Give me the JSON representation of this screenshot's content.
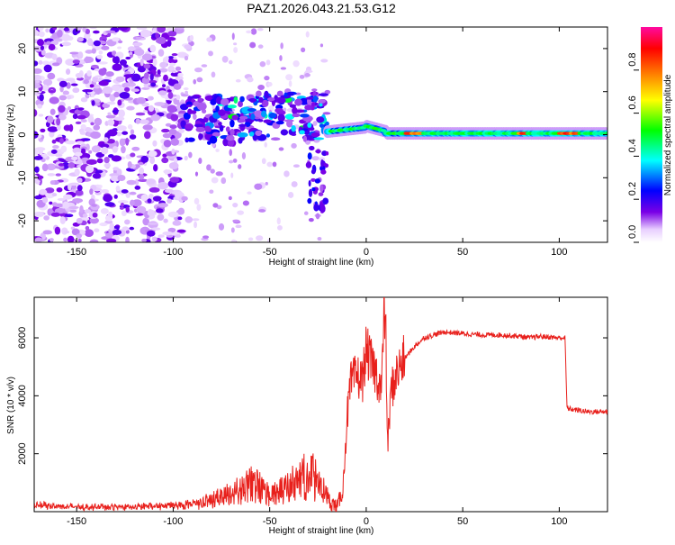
{
  "title": "PAZ1.2026.043.21.53.G12",
  "chart_data": [
    {
      "type": "heatmap",
      "title": "PAZ1.2026.043.21.53.G12",
      "xlabel": "Height of straight line (km)",
      "ylabel": "Frequency (Hz)",
      "xlim": [
        -172,
        125
      ],
      "ylim": [
        -25,
        25
      ],
      "xticks": [
        -150,
        -100,
        -50,
        0,
        50,
        100
      ],
      "yticks": [
        -20,
        -10,
        0,
        10,
        20
      ],
      "colorbar": {
        "label": "Normalized spectral amplitude",
        "range": [
          0.0,
          1.0
        ],
        "ticks": [
          0.0,
          0.2,
          0.4,
          0.6,
          0.8
        ],
        "colormap": [
          "#ffffff",
          "#7a00e6",
          "#0000ff",
          "#00ffff",
          "#00ff00",
          "#ffff00",
          "#ff8000",
          "#ff0000",
          "#ff00a0"
        ]
      },
      "description_regions": [
        {
          "x_range": [
            -172,
            -95
          ],
          "level": "scattered noise 0.0-0.2"
        },
        {
          "x_range": [
            -95,
            -20
          ],
          "level": "fragmented signal 0.2-0.6"
        },
        {
          "x_range": [
            -20,
            125
          ],
          "level": "tracked tone near 0 Hz, 0.5-0.9"
        }
      ]
    },
    {
      "type": "line",
      "xlabel": "Height of straight line (km)",
      "ylabel": "SNR (10 * v/v)",
      "xlim": [
        -172,
        125
      ],
      "ylim": [
        0,
        7400
      ],
      "xticks": [
        -150,
        -100,
        -50,
        0,
        50,
        100
      ],
      "yticks": [
        2000,
        4000,
        6000
      ],
      "color": "#e8201c",
      "series": [
        {
          "name": "SNR",
          "x": [
            -172,
            -150,
            -125,
            -100,
            -85,
            -75,
            -65,
            -58,
            -50,
            -42,
            -35,
            -28,
            -22,
            -18,
            -15,
            -12,
            -10,
            -8,
            -5,
            -2,
            0,
            2,
            5,
            8,
            9,
            10,
            11,
            13,
            16,
            20,
            25,
            30,
            40,
            50,
            60,
            70,
            80,
            85,
            90,
            100,
            103,
            104,
            105,
            110,
            115,
            125
          ],
          "y": [
            150,
            100,
            100,
            150,
            250,
            450,
            700,
            900,
            500,
            700,
            1000,
            1200,
            600,
            300,
            150,
            800,
            3200,
            4400,
            4700,
            4500,
            5600,
            5200,
            4800,
            4200,
            6500,
            7000,
            2200,
            4200,
            4800,
            5300,
            5700,
            6000,
            6200,
            6150,
            6100,
            6100,
            6050,
            6000,
            6050,
            6000,
            6000,
            3600,
            3550,
            3500,
            3450,
            3450
          ]
        }
      ]
    }
  ]
}
